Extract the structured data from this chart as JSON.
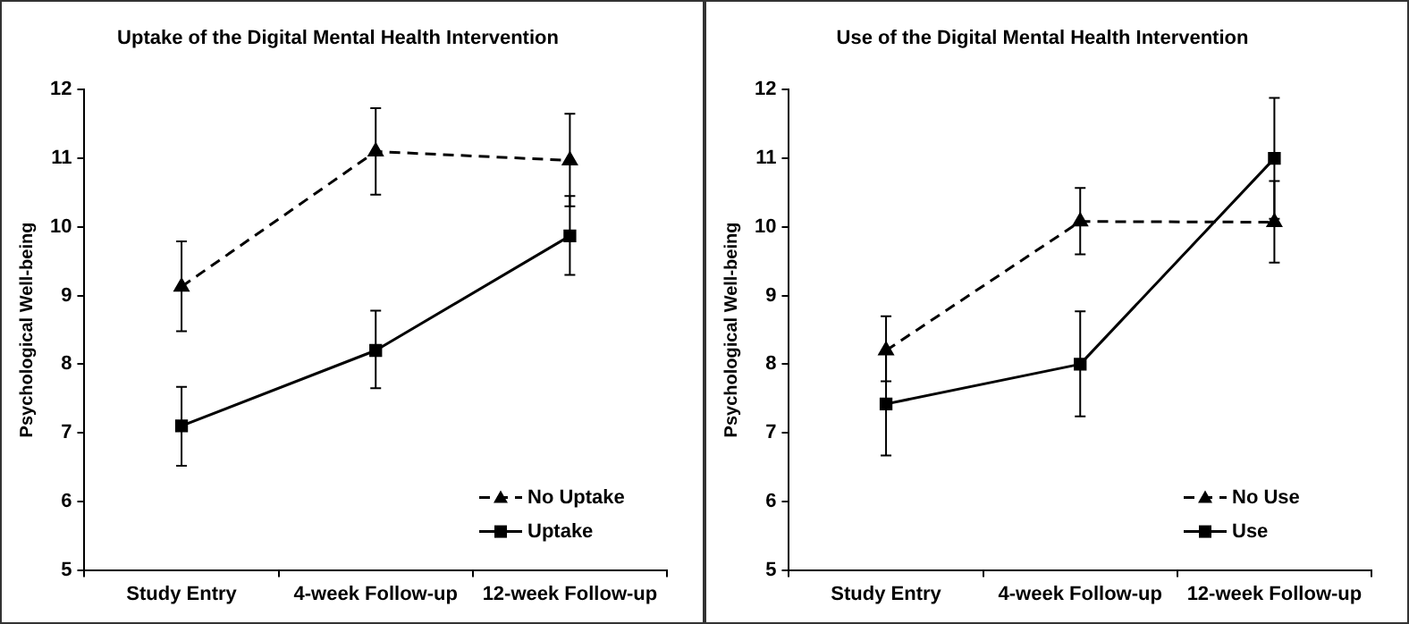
{
  "chart_data": [
    {
      "type": "line",
      "title": "Uptake of the Digital Mental Health Intervention",
      "ylabel": "Psychological Well-being",
      "categories": [
        "Study Entry",
        "4-week Follow-up",
        "12-week Follow-up"
      ],
      "ylim": [
        5,
        12
      ],
      "yticks": [
        5,
        6,
        7,
        8,
        9,
        10,
        11,
        12
      ],
      "grid": false,
      "legend": "bottom right",
      "series": [
        {
          "name": "No Uptake",
          "color": "#000000",
          "values": [
            9.13,
            11.1,
            10.97
          ],
          "errors": [
            [
              8.48,
              9.79
            ],
            [
              10.47,
              11.73
            ],
            [
              10.3,
              11.65
            ]
          ],
          "marker": "triangle",
          "line_style": "dashed"
        },
        {
          "name": "Uptake",
          "color": "#000000",
          "values": [
            7.1,
            8.2,
            9.87
          ],
          "errors": [
            [
              6.52,
              7.67
            ],
            [
              7.65,
              8.78
            ],
            [
              9.3,
              10.45
            ]
          ],
          "marker": "square",
          "line_style": "solid"
        }
      ]
    },
    {
      "type": "line",
      "title": "Use of the Digital Mental Health Intervention",
      "ylabel": "Psychological Well-being",
      "categories": [
        "Study Entry",
        "4-week Follow-up",
        "12-week Follow-up"
      ],
      "ylim": [
        5,
        12
      ],
      "yticks": [
        5,
        6,
        7,
        8,
        9,
        10,
        11,
        12
      ],
      "grid": false,
      "legend": "bottom right",
      "series": [
        {
          "name": "No Use",
          "color": "#000000",
          "values": [
            8.2,
            10.08,
            10.07
          ],
          "errors": [
            [
              7.75,
              8.7
            ],
            [
              9.6,
              10.57
            ],
            [
              9.48,
              10.67
            ]
          ],
          "marker": "triangle",
          "line_style": "dashed"
        },
        {
          "name": "Use",
          "color": "#000000",
          "values": [
            7.42,
            8.0,
            11.0
          ],
          "errors": [
            [
              6.67,
              8.17
            ],
            [
              7.24,
              8.77
            ],
            [
              10.12,
              11.88
            ]
          ],
          "marker": "square",
          "line_style": "solid"
        }
      ]
    }
  ]
}
